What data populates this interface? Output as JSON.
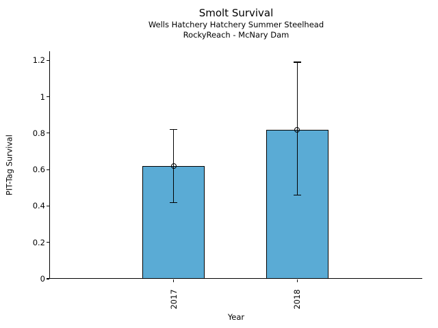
{
  "header": {
    "title": "Smolt Survival",
    "subtitle1": "Wells Hatchery Hatchery Summer Steelhead",
    "subtitle2": "RockyReach - McNary Dam"
  },
  "chart_data": {
    "type": "bar",
    "title": "Smolt Survival",
    "subtitles": [
      "Wells Hatchery Hatchery Summer Steelhead",
      "RockyReach - McNary Dam"
    ],
    "categories": [
      "2017",
      "2018"
    ],
    "values": [
      0.62,
      0.82
    ],
    "error_low": [
      0.42,
      0.46
    ],
    "error_high": [
      0.82,
      1.19
    ],
    "xlabel": "Year",
    "ylabel": "PIT-Tag Survival",
    "ylim": [
      0,
      1.25
    ],
    "yticks": [
      0,
      0.2,
      0.4,
      0.6,
      0.8,
      1,
      1.2
    ],
    "ytick_labels": [
      "0",
      "0.2",
      "0.4",
      "0.6",
      "0.8",
      "1",
      "1.2"
    ],
    "xtick_rotation_deg": 90,
    "bar_color": "#5aabd5",
    "bar_edge_color": "#000000",
    "error_color": "#000000",
    "marker": "open-circle",
    "grid": false,
    "legend": "none"
  }
}
